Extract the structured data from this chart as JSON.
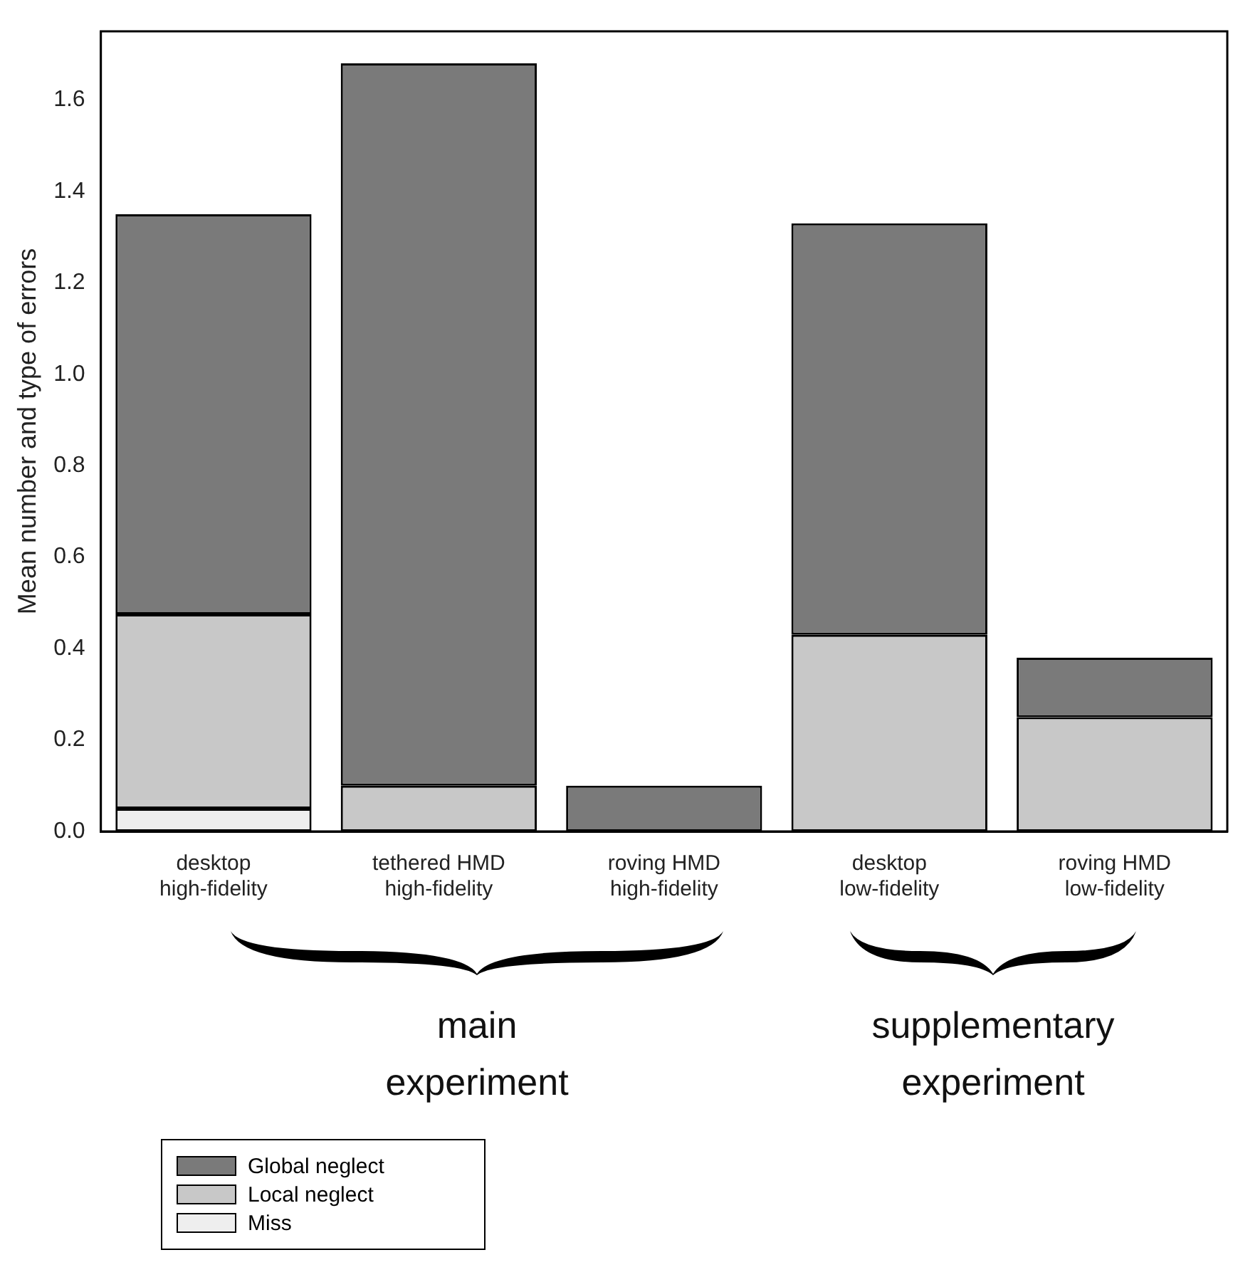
{
  "chart_data": {
    "type": "bar",
    "stacked": true,
    "ylabel": "Mean number and type of errors",
    "categories": [
      "desktop\nhigh-fidelity",
      "tethered HMD\nhigh-fidelity",
      "roving HMD\nhigh-fidelity",
      "desktop\nlow-fidelity",
      "roving HMD\nlow-fidelity"
    ],
    "series": [
      {
        "name": "Miss",
        "color": "#eeeeee",
        "values": [
          0.05,
          0,
          0,
          0,
          0
        ]
      },
      {
        "name": "Local neglect",
        "color": "#c8c8c8",
        "values": [
          0.425,
          0.1,
          0,
          0.43,
          0.25
        ]
      },
      {
        "name": "Global neglect",
        "color": "#7a7a7a",
        "values": [
          0.875,
          1.58,
          0.1,
          0.9,
          0.13
        ]
      }
    ],
    "ylim": [
      0,
      1.75
    ],
    "yticks": [
      {
        "value": 0,
        "label": "0.0"
      },
      {
        "value": 0.2,
        "label": "0.2"
      },
      {
        "value": 0.4,
        "label": "0.4"
      },
      {
        "value": 0.6,
        "label": "0.6"
      },
      {
        "value": 0.8,
        "label": "0.8"
      },
      {
        "value": 1,
        "label": "1.0"
      },
      {
        "value": 1.2,
        "label": "1.2"
      },
      {
        "value": 1.4,
        "label": "1.4"
      },
      {
        "value": 1.6,
        "label": "1.6"
      }
    ],
    "grid": false,
    "legend": "bottom left",
    "annotations": [
      "main\nexperiment",
      "supplementary\nexperiment"
    ]
  }
}
